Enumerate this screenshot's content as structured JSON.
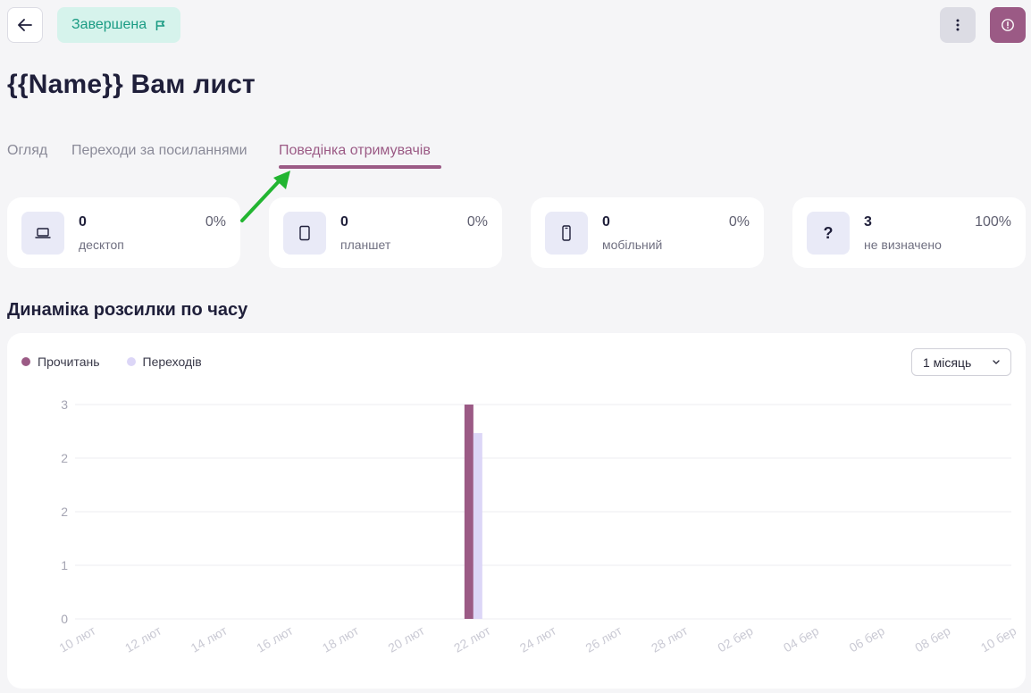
{
  "header": {
    "status_label": "Завершена",
    "title": "{{Name}} Вам лист"
  },
  "tabs": [
    {
      "label": "Огляд",
      "active": false
    },
    {
      "label": "Переходи за посиланнями",
      "active": false
    },
    {
      "label": "Поведінка отримувачів",
      "active": true
    }
  ],
  "devices": [
    {
      "icon": "laptop-icon",
      "value": "0",
      "label": "десктоп",
      "percent": "0%"
    },
    {
      "icon": "tablet-icon",
      "value": "0",
      "label": "планшет",
      "percent": "0%"
    },
    {
      "icon": "mobile-icon",
      "value": "0",
      "label": "мобільний",
      "percent": "0%"
    },
    {
      "icon": "question-icon",
      "symbol": "?",
      "value": "3",
      "label": "не визначено",
      "percent": "100%"
    }
  ],
  "section": {
    "title": "Динаміка розсилки по часу"
  },
  "period": {
    "selected": "1 місяць"
  },
  "colors": {
    "accent": "#9b5a85",
    "badge_bg": "#d6f3ec",
    "badge_text": "#1a9b83",
    "series_read": "#9b5a85",
    "series_clicks": "#dcd6f7"
  },
  "chart_data": {
    "type": "bar",
    "categories": [
      "10 лют",
      "12 лют",
      "14 лют",
      "16 лют",
      "18 лют",
      "20 лют",
      "22 лют",
      "24 лют",
      "26 лют",
      "28 лют",
      "02 бер",
      "04 бер",
      "06 бер",
      "08 бер",
      "10 бер"
    ],
    "series": [
      {
        "name": "Прочитань",
        "color": "#9b5a85",
        "values": [
          0,
          0,
          0,
          0,
          0,
          0,
          3,
          0,
          0,
          0,
          0,
          0,
          0,
          0,
          0
        ]
      },
      {
        "name": "Переходів",
        "color": "#dcd6f7",
        "values": [
          0,
          0,
          0,
          0,
          0,
          0,
          2.6,
          0,
          0,
          0,
          0,
          0,
          0,
          0,
          0
        ]
      }
    ],
    "y_ticks": [
      "0",
      "1",
      "2",
      "2",
      "3"
    ],
    "ylim": [
      0,
      3
    ],
    "grid": true,
    "legend": "top-left"
  }
}
